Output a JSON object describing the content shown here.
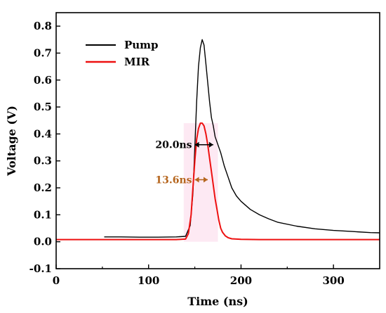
{
  "chart_data": {
    "type": "line",
    "xlabel": "Time (ns)",
    "ylabel": "Voltage (V)",
    "xlim": [
      0,
      350
    ],
    "ylim": [
      -0.1,
      0.85
    ],
    "x_ticks": [
      0,
      100,
      200,
      300
    ],
    "y_ticks": [
      -0.1,
      0.0,
      0.1,
      0.2,
      0.3,
      0.4,
      0.5,
      0.6,
      0.7,
      0.8
    ],
    "grid": false,
    "legend_position": "top-left",
    "series": [
      {
        "name": "Pump",
        "color": "#000000",
        "x": [
          52,
          70,
          90,
          110,
          130,
          140,
          145,
          148,
          150,
          152,
          154,
          156,
          158,
          160,
          162,
          164,
          166,
          168,
          170,
          172,
          175,
          178,
          182,
          186,
          190,
          195,
          200,
          210,
          220,
          230,
          240,
          260,
          280,
          300,
          320,
          340,
          350
        ],
        "values": [
          0.018,
          0.018,
          0.017,
          0.017,
          0.018,
          0.02,
          0.06,
          0.18,
          0.35,
          0.52,
          0.65,
          0.72,
          0.75,
          0.73,
          0.66,
          0.59,
          0.52,
          0.46,
          0.43,
          0.39,
          0.36,
          0.33,
          0.28,
          0.24,
          0.2,
          0.17,
          0.15,
          0.12,
          0.1,
          0.085,
          0.072,
          0.058,
          0.048,
          0.042,
          0.038,
          0.034,
          0.033
        ]
      },
      {
        "name": "MIR",
        "color": "#ee1111",
        "x": [
          0,
          50,
          100,
          130,
          140,
          143,
          146,
          148,
          150,
          152,
          154,
          156,
          158,
          160,
          162,
          164,
          166,
          168,
          170,
          172,
          174,
          176,
          178,
          180,
          183,
          186,
          190,
          200,
          220,
          250,
          300,
          350
        ],
        "values": [
          0.008,
          0.008,
          0.008,
          0.008,
          0.01,
          0.03,
          0.1,
          0.2,
          0.3,
          0.38,
          0.42,
          0.44,
          0.44,
          0.43,
          0.4,
          0.36,
          0.31,
          0.26,
          0.21,
          0.16,
          0.12,
          0.08,
          0.05,
          0.035,
          0.022,
          0.015,
          0.011,
          0.009,
          0.008,
          0.008,
          0.008,
          0.008
        ]
      }
    ],
    "annotations": [
      {
        "label": "20.0ns",
        "color": "#000000",
        "x_start": 150,
        "x_end": 170,
        "y": 0.36
      },
      {
        "label": "13.6ns",
        "color": "#b5651d",
        "x_start": 150,
        "x_end": 164,
        "y": 0.23
      }
    ]
  }
}
